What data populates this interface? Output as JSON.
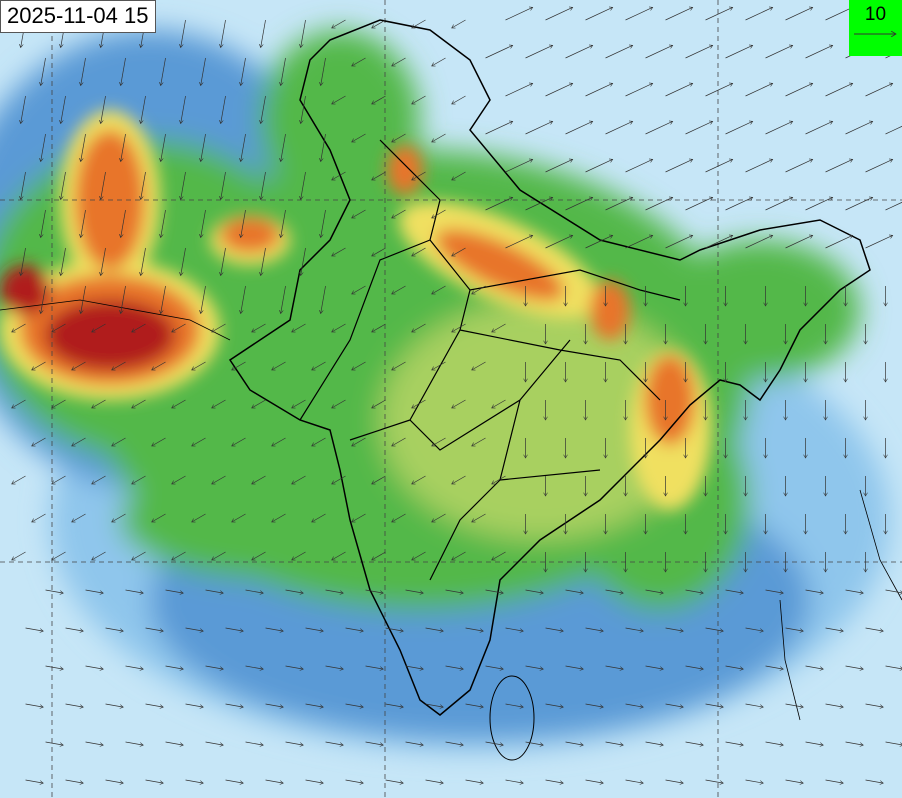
{
  "timestamp": "2025-11-04 15",
  "legend": {
    "reference_wind_speed": "10",
    "arrow_icon": "reference-arrow-icon",
    "color": "#00ff00"
  },
  "colors": {
    "ocean": "#c6e6f7",
    "low": "#5a9ad6",
    "mid": "#52b848",
    "high": "#f0e060",
    "higher": "#e8752a",
    "max": "#b01c1c"
  }
}
